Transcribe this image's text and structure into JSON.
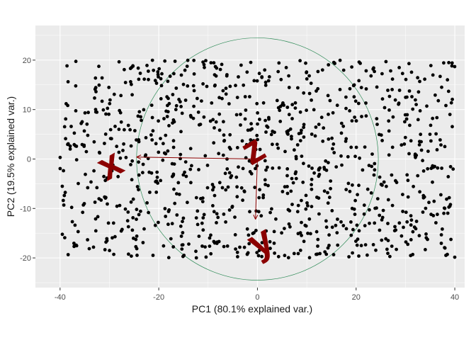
{
  "chart_data": {
    "type": "scatter",
    "title": "",
    "xlabel": "PC1 (80.1% explained var.)",
    "ylabel": "PC2 (19.5% explained var.)",
    "xlim": [
      -45,
      42
    ],
    "ylim": [
      -26,
      27
    ],
    "x_ticks": [
      -40,
      -20,
      0,
      20,
      40
    ],
    "y_ticks": [
      -20,
      -10,
      0,
      10,
      20
    ],
    "x_tick_labels": [
      "-40",
      "-20",
      "0",
      "20",
      "40"
    ],
    "y_tick_labels": [
      "-20",
      "-10",
      "0",
      "10",
      "20"
    ],
    "grid": true,
    "background": "#ebebeb",
    "point_color": "#000000",
    "point_count": 1000,
    "x_range": [
      -40,
      40
    ],
    "y_range": [
      -20,
      20
    ],
    "circle": {
      "center": [
        0,
        0
      ],
      "radius": 24.5,
      "color": "#2e8b57"
    },
    "arrows": [
      {
        "label": "x",
        "x_end": -24.5,
        "y_end": 0.4,
        "label_x": -30,
        "label_y": -1
      },
      {
        "label": "y",
        "x_end": -0.4,
        "y_end": -12.2,
        "label_x": 0.5,
        "label_y": -16.5
      },
      {
        "label": "z",
        "x_end": 0.3,
        "y_end": 0.3,
        "label_x": -1,
        "label_y": 2
      }
    ],
    "arrow_color": "#8b0000"
  }
}
